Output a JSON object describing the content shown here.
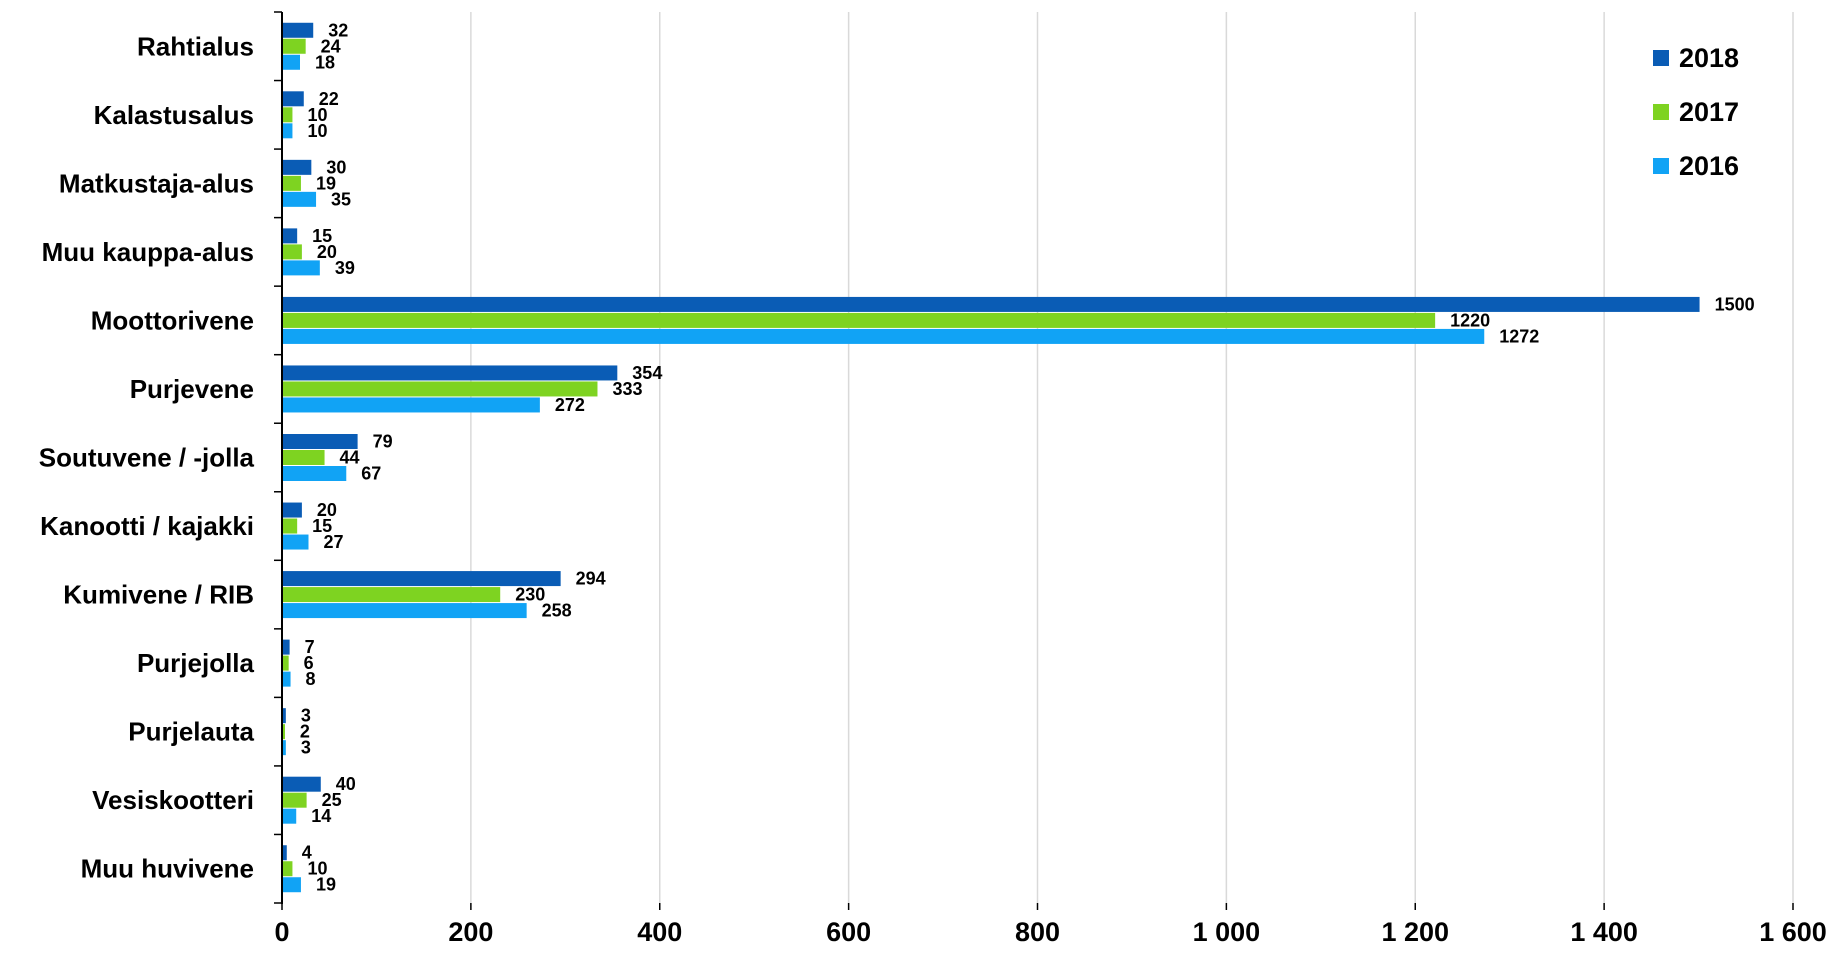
{
  "chart_data": {
    "type": "bar",
    "orientation": "horizontal",
    "categories": [
      "Rahtialus",
      "Kalastusalus",
      "Matkustaja-alus",
      "Muu kauppa-alus",
      "Moottorivene",
      "Purjevene",
      "Soutuvene / -jolla",
      "Kanootti / kajakki",
      "Kumivene / RIB",
      "Purjejolla",
      "Purjelauta",
      "Vesiskootteri",
      "Muu huvivene"
    ],
    "series": [
      {
        "name": "2018",
        "color": "#0a5cb5",
        "values": [
          32,
          22,
          30,
          15,
          1500,
          354,
          79,
          20,
          294,
          7,
          3,
          40,
          4
        ]
      },
      {
        "name": "2017",
        "color": "#7ed321",
        "values": [
          24,
          10,
          19,
          20,
          1220,
          333,
          44,
          15,
          230,
          6,
          2,
          25,
          10
        ]
      },
      {
        "name": "2016",
        "color": "#11a3f5",
        "values": [
          18,
          10,
          35,
          39,
          1272,
          272,
          67,
          27,
          258,
          8,
          3,
          14,
          19
        ]
      }
    ],
    "xlim": [
      0,
      1600
    ],
    "x_ticks": [
      0,
      200,
      400,
      600,
      800,
      1000,
      1200,
      1400,
      1600
    ],
    "x_tick_labels": [
      "0",
      "200",
      "400",
      "600",
      "800",
      "1 000",
      "1 200",
      "1 400",
      "1 600"
    ],
    "grid": "vertical",
    "legend_position": "top-right",
    "xlabel": "",
    "ylabel": "",
    "title": ""
  }
}
